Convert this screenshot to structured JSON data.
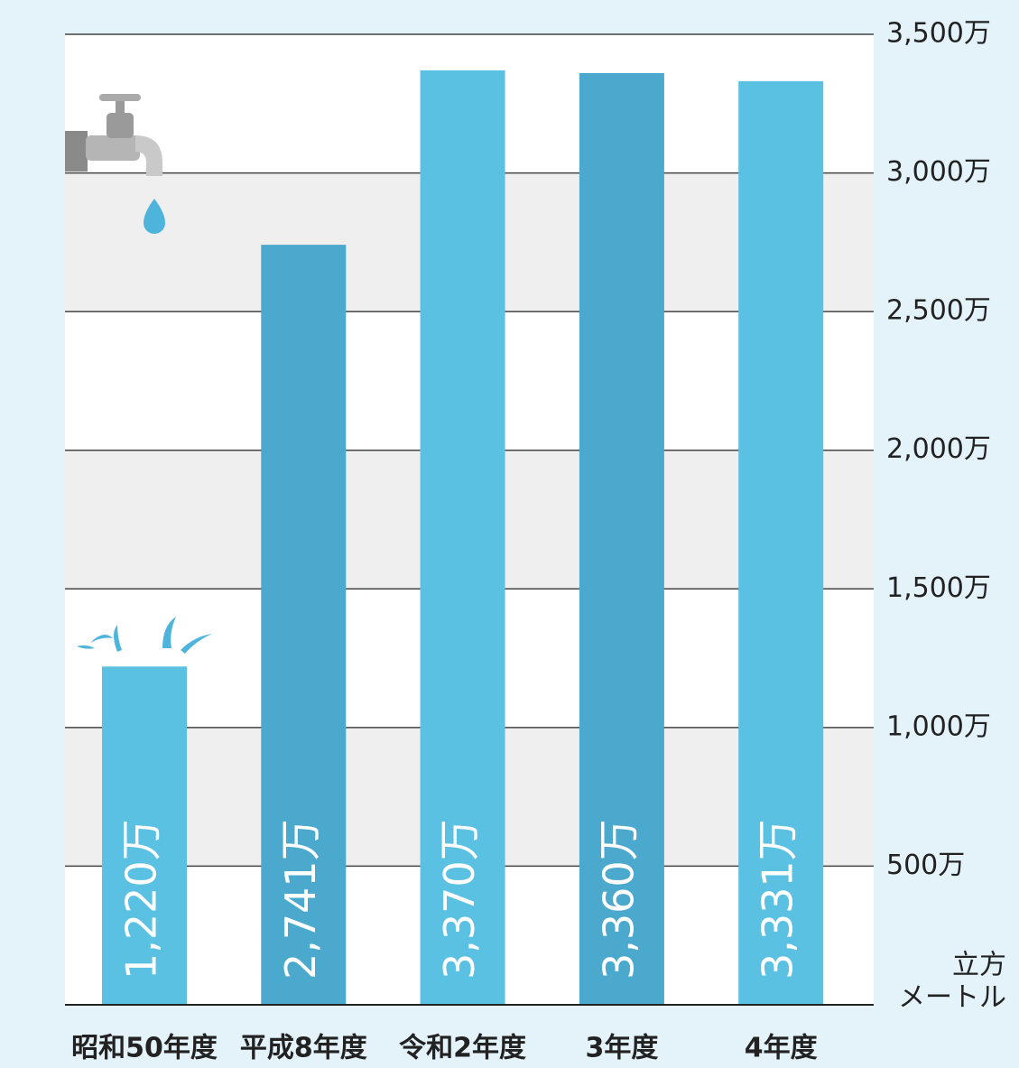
{
  "chart_data": {
    "type": "bar",
    "categories": [
      "昭和50年度",
      "平成8年度",
      "令和2年度",
      "3年度",
      "4年度"
    ],
    "values": [
      1220,
      2741,
      3370,
      3360,
      3331
    ],
    "value_labels": [
      "1,220万",
      "2,741万",
      "3,370万",
      "3,360万",
      "3,331万"
    ],
    "colors": [
      "#5bc1e2",
      "#4aa9cd",
      "#5bc1e2",
      "#4aa9cd",
      "#5bc1e2"
    ],
    "ylim": [
      0,
      3500
    ],
    "yticks": [
      {
        "value": 500,
        "label": "500万"
      },
      {
        "value": 1000,
        "label": "1,000万"
      },
      {
        "value": 1500,
        "label": "1,500万"
      },
      {
        "value": 2000,
        "label": "2,000万"
      },
      {
        "value": 2500,
        "label": "2,500万"
      },
      {
        "value": 3000,
        "label": "3,000万"
      },
      {
        "value": 3500,
        "label": "3,500万"
      }
    ],
    "y_unit": [
      "立方",
      "メートル"
    ],
    "grid": true
  }
}
